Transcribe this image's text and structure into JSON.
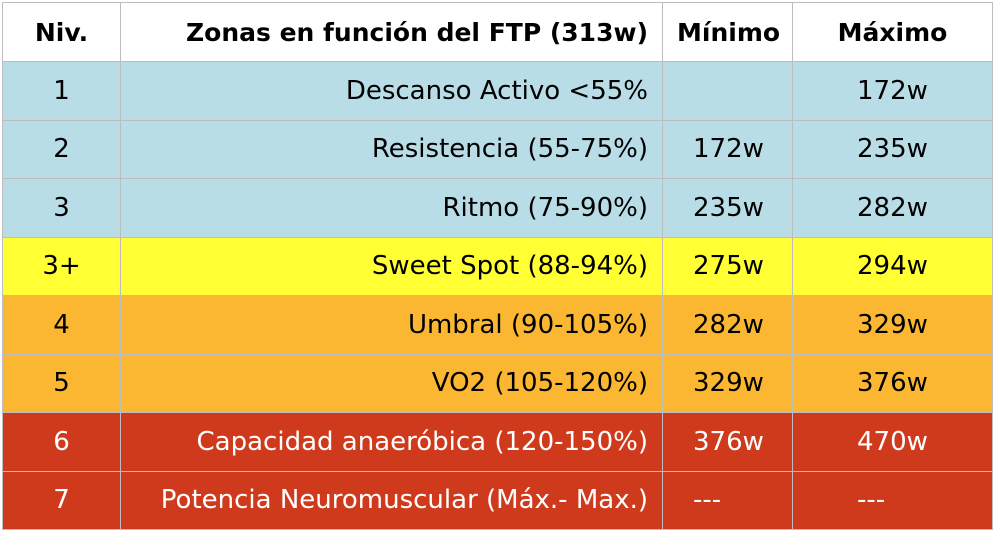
{
  "table": {
    "headers": {
      "level": "Niv.",
      "zone": "Zonas en función del FTP (313w)",
      "min": "Mínimo",
      "max": "Máximo"
    },
    "rows": [
      {
        "level": "1",
        "zone": "Descanso Activo <55%",
        "min": "",
        "max": "172w",
        "color": "#b8dde6",
        "text_color": "#000000"
      },
      {
        "level": "2",
        "zone": "Resistencia (55-75%)",
        "min": "172w",
        "max": "235w",
        "color": "#b8dde6",
        "text_color": "#000000"
      },
      {
        "level": "3",
        "zone": "Ritmo (75-90%)",
        "min": "235w",
        "max": "282w",
        "color": "#b8dde6",
        "text_color": "#000000"
      },
      {
        "level": "3+",
        "zone": "Sweet Spot (88-94%)",
        "min": "275w",
        "max": "294w",
        "color": "#ffff33",
        "text_color": "#000000"
      },
      {
        "level": "4",
        "zone": "Umbral (90-105%)",
        "min": "282w",
        "max": "329w",
        "color": "#fbb732",
        "text_color": "#000000"
      },
      {
        "level": "5",
        "zone": "VO2 (105-120%)",
        "min": "329w",
        "max": "376w",
        "color": "#fbb732",
        "text_color": "#000000"
      },
      {
        "level": "6",
        "zone": "Capacidad anaeróbica (120-150%)",
        "min": "376w",
        "max": "470w",
        "color": "#d03a1c",
        "text_color": "#ffffff"
      },
      {
        "level": "7",
        "zone": "Potencia Neuromuscular (Máx.- Max.)",
        "min": "---",
        "max": "---",
        "color": "#d03a1c",
        "text_color": "#ffffff"
      }
    ]
  }
}
